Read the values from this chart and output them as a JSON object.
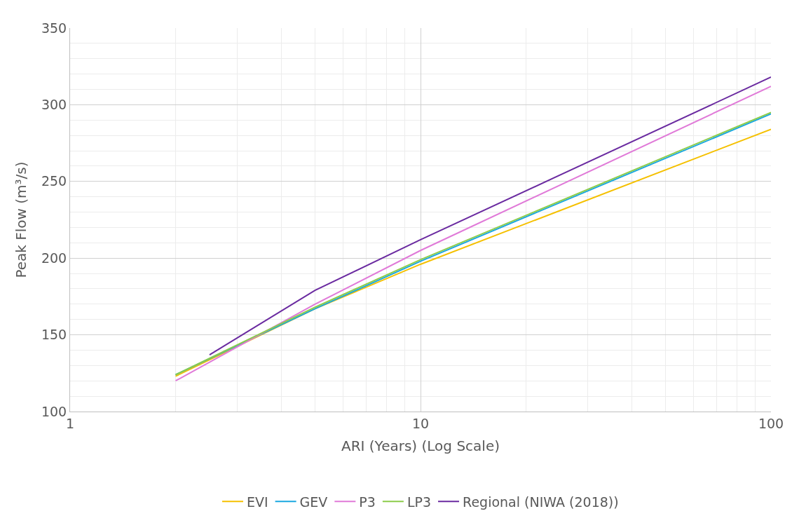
{
  "chart_data": {
    "type": "line",
    "xlabel": "ARI (Years) (Log Scale)",
    "ylabel": "Peak Flow (m³/s)",
    "log": "x",
    "xlim": [
      1,
      100
    ],
    "xticks": [
      1,
      10,
      100
    ],
    "ylim": [
      100,
      350
    ],
    "yticks": [
      100,
      150,
      200,
      250,
      300,
      350
    ],
    "grid": true,
    "legend": "bottom",
    "marker": "none",
    "line_style": "solid",
    "series": [
      {
        "name": "EVI",
        "color": "#f5c000",
        "x": [
          2,
          5,
          10,
          100
        ],
        "values": [
          123,
          167,
          196,
          284
        ]
      },
      {
        "name": "GEV",
        "color": "#1aa7e0",
        "x": [
          2,
          5,
          10,
          100
        ],
        "values": [
          124,
          167,
          198,
          294
        ]
      },
      {
        "name": "P3",
        "color": "#e07ad8",
        "x": [
          2,
          5,
          10,
          100
        ],
        "values": [
          120,
          170,
          205,
          312
        ]
      },
      {
        "name": "LP3",
        "color": "#8ccc4a",
        "x": [
          2,
          5,
          10,
          100
        ],
        "values": [
          124,
          168,
          199,
          295
        ]
      },
      {
        "name": "Regional (NIWA (2018))",
        "color": "#6a2aa0",
        "x": [
          2.5,
          5,
          10,
          100
        ],
        "values": [
          137,
          179,
          212,
          318
        ]
      }
    ]
  }
}
